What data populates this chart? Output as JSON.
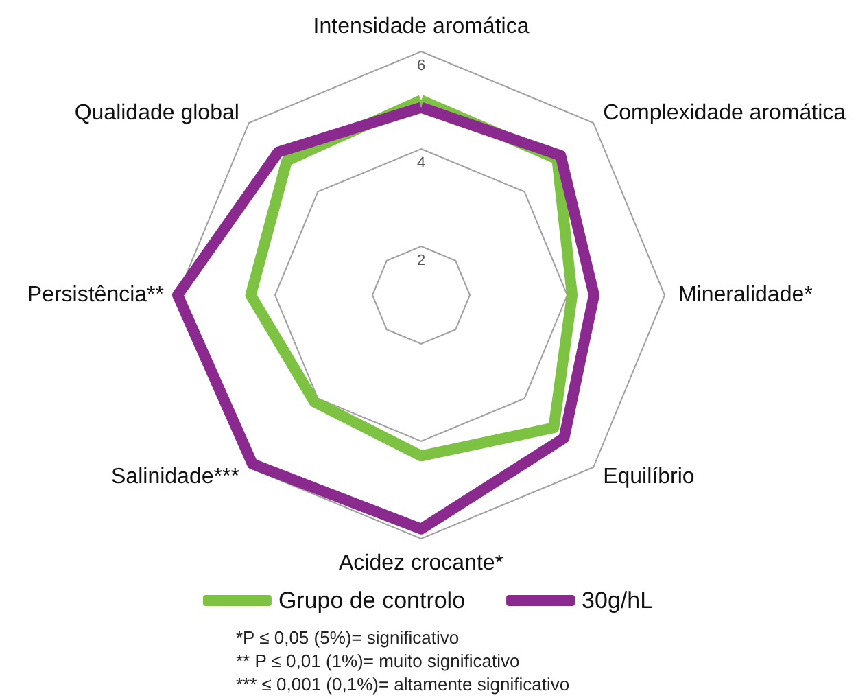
{
  "chart_data": {
    "type": "radar",
    "categories": [
      "Intensidade aromática",
      "Complexidade aromática",
      "Mineralidade*",
      "Equilíbrio",
      "Acidez crocante*",
      "Salinidade***",
      "Persistência**",
      "Qualidade global"
    ],
    "series": [
      {
        "name": "Grupo de controlo",
        "color": "#7dc242",
        "values": [
          5.0,
          4.95,
          4.1,
          4.85,
          4.3,
          4.1,
          4.5,
          4.9
        ]
      },
      {
        "name": "30g/hL",
        "color": "#8b2a8e",
        "values": [
          4.85,
          5.05,
          4.55,
          5.15,
          5.8,
          5.9,
          6.0,
          5.15
        ]
      }
    ],
    "ylim": [
      1,
      6
    ],
    "yticks": [
      2,
      4,
      6
    ],
    "grid": true,
    "legend": "bottom",
    "marker": "none",
    "line_style": "solid",
    "annotations": [
      "*P ≤ 0,05 (5%)= significativo",
      "** P ≤ 0,01 (1%)= muito significativo",
      "*** ≤ 0,001 (0,1%)= altamente significativo"
    ]
  }
}
